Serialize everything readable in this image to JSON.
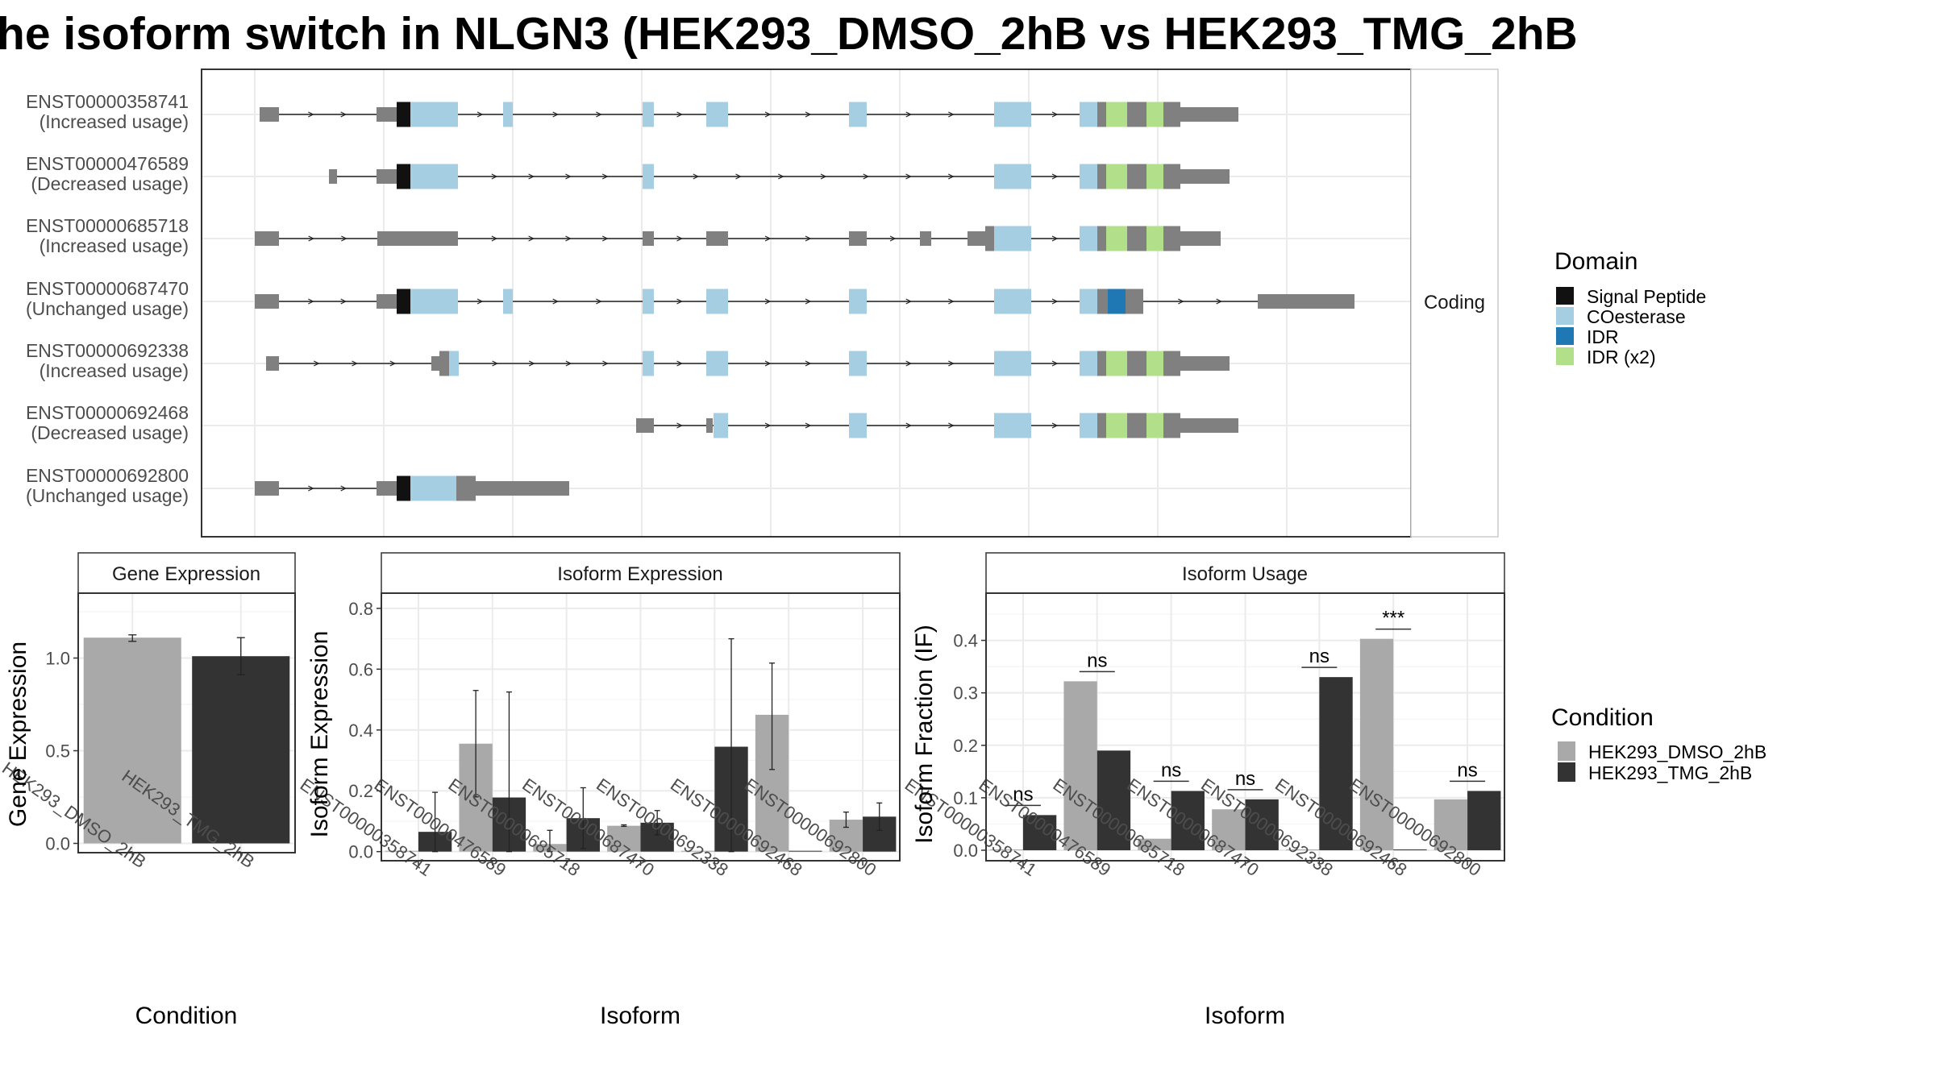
{
  "title": "he isoform switch in NLGN3 (HEK293_DMSO_2hB vs HEK293_TMG_2hB",
  "colors": {
    "signal_peptide": "#111111",
    "coesterase": "#A6CEE3",
    "idr": "#1F78B4",
    "idr_x2": "#B2DF8A",
    "utr": "#808080",
    "dmso": "#A9A9A9",
    "tmg": "#333333"
  },
  "structure": {
    "facet_label": "Coding",
    "isoforms": [
      {
        "id": "ENST00000358741",
        "status": "(Increased usage)"
      },
      {
        "id": "ENST00000476589",
        "status": "(Decreased usage)"
      },
      {
        "id": "ENST00000685718",
        "status": "(Increased usage)"
      },
      {
        "id": "ENST00000687470",
        "status": "(Unchanged usage)"
      },
      {
        "id": "ENST00000692338",
        "status": "(Increased usage)"
      },
      {
        "id": "ENST00000692468",
        "status": "(Decreased usage)"
      },
      {
        "id": "ENST00000692800",
        "status": "(Unchanged usage)"
      }
    ],
    "domain_legend": {
      "title": "Domain",
      "items": [
        "Signal Peptide",
        "COesterase",
        "IDR",
        "IDR (x2)"
      ]
    }
  },
  "condition_legend": {
    "title": "Condition",
    "items": [
      "HEK293_DMSO_2hB",
      "HEK293_TMG_2hB"
    ]
  },
  "chart_data": [
    {
      "type": "bar",
      "panel_title": "Gene Expression",
      "xlabel": "Condition",
      "ylabel": "Gene Expression",
      "categories": [
        "HEK293_DMSO_2hB",
        "HEK293_TMG_2hB"
      ],
      "values": [
        1.11,
        1.01
      ],
      "error_low": [
        1.09,
        0.91
      ],
      "error_high": [
        1.125,
        1.11
      ],
      "ylim": [
        -0.05,
        1.35
      ],
      "yticks": [
        "0.0",
        "0.5",
        "1.0"
      ]
    },
    {
      "type": "bar",
      "panel_title": "Isoform Expression",
      "xlabel": "Isoform",
      "ylabel": "Isoform Expression",
      "categories": [
        "ENST00000358741",
        "ENST00000476589",
        "ENST00000685718",
        "ENST00000687470",
        "ENST00000692338",
        "ENST00000692468",
        "ENST00000692800"
      ],
      "series": [
        {
          "name": "HEK293_DMSO_2hB",
          "values": [
            0.0,
            0.355,
            0.025,
            0.085,
            0.0,
            0.45,
            0.105
          ],
          "error_low": [
            null,
            0.18,
            0.0,
            0.083,
            null,
            0.27,
            0.08
          ],
          "error_high": [
            null,
            0.53,
            0.07,
            0.088,
            null,
            0.62,
            0.13
          ]
        },
        {
          "name": "HEK293_TMG_2hB",
          "values": [
            0.065,
            0.178,
            0.11,
            0.095,
            0.345,
            0.0,
            0.115
          ],
          "error_low": [
            0.0,
            0.0,
            0.01,
            0.055,
            0.0,
            null,
            0.07
          ],
          "error_high": [
            0.195,
            0.525,
            0.21,
            0.135,
            0.7,
            null,
            0.16
          ]
        }
      ],
      "ylim": [
        -0.03,
        0.85
      ],
      "yticks": [
        "0.0",
        "0.2",
        "0.4",
        "0.6",
        "0.8"
      ]
    },
    {
      "type": "bar",
      "panel_title": "Isoform Usage",
      "xlabel": "Isoform",
      "ylabel": "Isoform Fraction (IF)",
      "categories": [
        "ENST00000358741",
        "ENST00000476589",
        "ENST00000685718",
        "ENST00000687470",
        "ENST00000692338",
        "ENST00000692468",
        "ENST00000692800"
      ],
      "series": [
        {
          "name": "HEK293_DMSO_2hB",
          "values": [
            0.0,
            0.322,
            0.022,
            0.078,
            0.0,
            0.403,
            0.097
          ]
        },
        {
          "name": "HEK293_TMG_2hB",
          "values": [
            0.067,
            0.19,
            0.113,
            0.097,
            0.33,
            0.0,
            0.113
          ]
        }
      ],
      "significance": [
        "ns",
        "ns",
        "ns",
        "ns",
        "ns",
        "***",
        "ns"
      ],
      "ylim": [
        -0.02,
        0.49
      ],
      "yticks": [
        "0.0",
        "0.1",
        "0.2",
        "0.3",
        "0.4"
      ]
    }
  ]
}
